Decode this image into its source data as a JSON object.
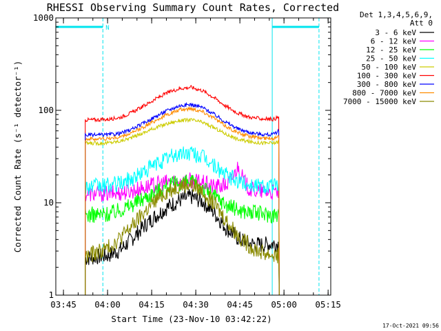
{
  "chart_data": {
    "type": "line",
    "title": "RHESSI Observing Summary Count Rates, Corrected",
    "xlabel": "Start Time (23-Nov-10 03:42:22)",
    "ylabel": "Corrected Count Rate (s⁻¹ detector⁻¹)",
    "x_unit": "minutes after 03:42:22",
    "xlim": [
      0,
      93.5
    ],
    "ylim": [
      1,
      1000
    ],
    "yscale": "log",
    "xticks": [
      {
        "label": "03:45",
        "x": 2.6
      },
      {
        "label": "04:00",
        "x": 17.6
      },
      {
        "label": "04:15",
        "x": 32.6
      },
      {
        "label": "04:30",
        "x": 47.6
      },
      {
        "label": "04:45",
        "x": 62.6
      },
      {
        "label": "05:00",
        "x": 77.6
      },
      {
        "label": "05:15",
        "x": 92.6
      }
    ],
    "yticks": [
      {
        "label": "1",
        "y": 1
      },
      {
        "label": "10",
        "y": 10
      },
      {
        "label": "100",
        "y": 100
      },
      {
        "label": "1000",
        "y": 1000
      }
    ],
    "legend": {
      "header": [
        "Det 1,3,4,5,6,9,",
        "Att 0"
      ],
      "placement": "right"
    },
    "annotations": {
      "flag_label": "N",
      "flag_level": 800,
      "flag_segments": [
        [
          0,
          16
        ],
        [
          73.6,
          89.5
        ]
      ],
      "flag_color": "#00e5ee",
      "vlines_solid": [
        0,
        73.6
      ],
      "vlines_dashed": [
        16,
        89.5
      ]
    },
    "footer": "17-Oct-2021 09:56",
    "series": [
      {
        "name": "3 - 6 keV",
        "color": "#000000",
        "x": [
          10,
          14,
          18,
          22,
          26,
          30,
          34,
          38,
          42,
          46,
          50,
          54,
          58,
          62,
          66,
          70,
          74,
          76
        ],
        "y": [
          2.5,
          2.6,
          2.7,
          3.1,
          4.1,
          5.6,
          7.2,
          9.0,
          10.6,
          11.6,
          10.3,
          7.7,
          5.3,
          4.1,
          3.6,
          3.5,
          3.6,
          3.6
        ]
      },
      {
        "name": "6 - 12 keV",
        "color": "#ff00ff",
        "x": [
          10,
          14,
          18,
          22,
          26,
          30,
          34,
          38,
          42,
          46,
          50,
          54,
          58,
          60,
          62,
          64,
          66,
          70,
          74,
          76
        ],
        "y": [
          12.5,
          12.5,
          12.6,
          12.8,
          13.5,
          14.6,
          15.8,
          16.7,
          17.2,
          17.4,
          16.4,
          14.8,
          15.5,
          18.0,
          25.0,
          17.0,
          13.8,
          13.2,
          12.9,
          13.0
        ]
      },
      {
        "name": "12 - 25 keV",
        "color": "#00ff00",
        "x": [
          10,
          14,
          18,
          22,
          26,
          30,
          34,
          38,
          42,
          46,
          50,
          54,
          58,
          62,
          66,
          70,
          74,
          76
        ],
        "y": [
          7.4,
          7.4,
          7.6,
          8.4,
          9.6,
          11.3,
          13.2,
          15.2,
          16.3,
          16.6,
          14.6,
          11.8,
          9.5,
          8.4,
          7.9,
          7.6,
          7.4,
          7.5
        ]
      },
      {
        "name": "25 - 50 keV",
        "color": "#00ffff",
        "x": [
          10,
          14,
          18,
          22,
          26,
          30,
          34,
          38,
          42,
          46,
          50,
          54,
          58,
          62,
          66,
          70,
          74,
          76
        ],
        "y": [
          15,
          15,
          15.3,
          16.2,
          18.3,
          21.8,
          26,
          30.5,
          33.8,
          34.6,
          31.2,
          25,
          19.8,
          17,
          15.8,
          15.3,
          15.1,
          15.1
        ]
      },
      {
        "name": "50 - 100 keV",
        "color": "#cccc00",
        "x": [
          10,
          14,
          18,
          22,
          26,
          30,
          34,
          38,
          42,
          46,
          50,
          54,
          58,
          62,
          66,
          70,
          74,
          76
        ],
        "y": [
          44,
          44,
          44.5,
          46.5,
          51,
          57.5,
          65,
          72,
          77.5,
          79,
          74,
          64.5,
          55,
          48.5,
          45.5,
          44.5,
          44.2,
          46
        ]
      },
      {
        "name": "100 - 300 keV",
        "color": "#ff0000",
        "x": [
          10,
          14,
          18,
          22,
          26,
          30,
          34,
          38,
          42,
          46,
          50,
          54,
          58,
          62,
          66,
          70,
          74,
          76
        ],
        "y": [
          79,
          79,
          80,
          84,
          95,
          112,
          133,
          155,
          172,
          178,
          163,
          136,
          110,
          93,
          84,
          81,
          80,
          85
        ]
      },
      {
        "name": "300 - 800 keV",
        "color": "#0000ff",
        "x": [
          10,
          14,
          18,
          22,
          26,
          30,
          34,
          38,
          42,
          46,
          50,
          54,
          58,
          62,
          66,
          70,
          74,
          76
        ],
        "y": [
          54,
          54,
          54.5,
          56.5,
          62.5,
          73,
          86,
          100,
          112,
          116,
          107,
          90,
          74,
          63,
          57.5,
          55,
          54.5,
          61
        ]
      },
      {
        "name": "800 - 7000 keV",
        "color": "#ff8c00",
        "x": [
          10,
          14,
          18,
          22,
          26,
          30,
          34,
          38,
          42,
          46,
          50,
          54,
          58,
          62,
          66,
          70,
          74,
          76
        ],
        "y": [
          49,
          49,
          49.5,
          51.5,
          57,
          66.5,
          78,
          90,
          101,
          105,
          97,
          81.5,
          67,
          57,
          52,
          50,
          49.5,
          55
        ]
      },
      {
        "name": "7000 - 15000 keV",
        "color": "#8b8b00",
        "x": [
          10,
          14,
          18,
          22,
          26,
          30,
          34,
          38,
          42,
          46,
          50,
          54,
          58,
          62,
          66,
          70,
          74,
          76
        ],
        "y": [
          2.6,
          2.9,
          3.3,
          4.2,
          5.6,
          7.8,
          10.6,
          13.4,
          15.4,
          15.8,
          13.4,
          9.6,
          6.4,
          4.4,
          3.4,
          2.9,
          2.7,
          2.7
        ]
      }
    ]
  }
}
